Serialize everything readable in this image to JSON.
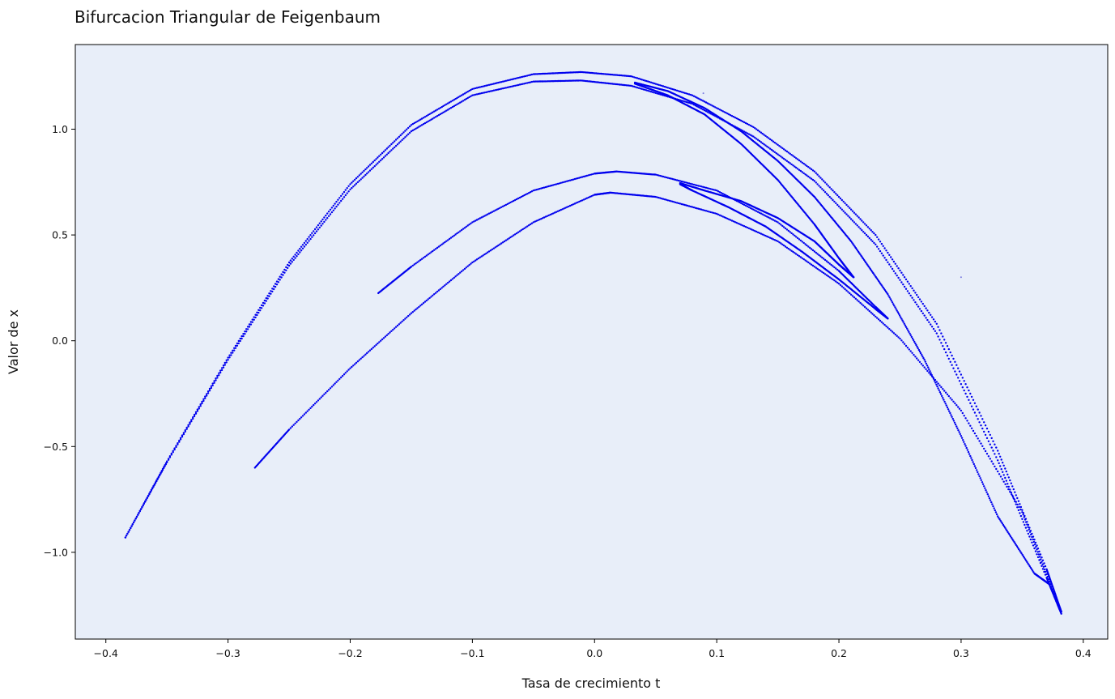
{
  "chart_data": {
    "type": "scatter",
    "title": "Bifurcacion Triangular de Feigenbaum",
    "xlabel": "Tasa de crecimiento t",
    "ylabel": "Valor de x",
    "xlim": [
      -0.425,
      0.42
    ],
    "ylim": [
      -1.41,
      1.4
    ],
    "xticks": [
      -0.4,
      -0.3,
      -0.2,
      -0.1,
      0.0,
      0.1,
      0.2,
      0.3,
      0.4
    ],
    "xtick_labels": [
      "−0.4",
      "−0.3",
      "−0.2",
      "−0.1",
      "0.0",
      "0.1",
      "0.2",
      "0.3",
      "0.4"
    ],
    "yticks": [
      -1.0,
      -0.5,
      0.0,
      0.5,
      1.0
    ],
    "ytick_labels": [
      "−1.0",
      "−0.5",
      "0.0",
      "0.5",
      "1.0"
    ],
    "grid": false,
    "colors": {
      "points": "#0000ee",
      "plot_background": "#e8eef9",
      "stray_points": "#7a7ae0"
    },
    "series": [
      {
        "x": [
          -0.384,
          -0.35,
          -0.3,
          -0.25,
          -0.2,
          -0.15,
          -0.1,
          -0.05,
          -0.011,
          0.03,
          0.08,
          0.13,
          0.18,
          0.23,
          0.28,
          0.33,
          0.37,
          0.382
        ],
        "y": [
          -0.93,
          -0.57,
          -0.08,
          0.37,
          0.74,
          1.02,
          1.19,
          1.26,
          1.27,
          1.25,
          1.16,
          1.01,
          0.8,
          0.5,
          0.08,
          -0.52,
          -1.08,
          -1.28
        ]
      },
      {
        "x": [
          -0.384,
          -0.35,
          -0.3,
          -0.25,
          -0.2,
          -0.15,
          -0.1,
          -0.05,
          -0.011,
          0.03,
          0.08,
          0.13,
          0.18,
          0.23,
          0.28,
          0.33,
          0.37,
          0.382
        ],
        "y": [
          -0.93,
          -0.575,
          -0.09,
          0.355,
          0.715,
          0.99,
          1.16,
          1.225,
          1.23,
          1.205,
          1.12,
          0.965,
          0.755,
          0.455,
          0.035,
          -0.565,
          -1.12,
          -1.29
        ]
      },
      {
        "x": [
          0.033,
          0.06,
          0.09,
          0.12,
          0.15,
          0.18,
          0.21,
          0.24,
          0.27,
          0.3,
          0.33,
          0.36,
          0.372
        ],
        "y": [
          1.22,
          1.18,
          1.1,
          0.99,
          0.85,
          0.68,
          0.47,
          0.22,
          -0.09,
          -0.45,
          -0.83,
          -1.1,
          -1.15
        ]
      },
      {
        "x": [
          0.033,
          0.06,
          0.09,
          0.12,
          0.15,
          0.18,
          0.2,
          0.212
        ],
        "y": [
          1.215,
          1.16,
          1.07,
          0.93,
          0.76,
          0.55,
          0.39,
          0.3
        ]
      },
      {
        "x": [
          0.212,
          0.2,
          0.18,
          0.15,
          0.12,
          0.09,
          0.07
        ],
        "y": [
          0.3,
          0.36,
          0.47,
          0.58,
          0.66,
          0.71,
          0.745
        ]
      },
      {
        "x": [
          -0.278,
          -0.25,
          -0.2,
          -0.15,
          -0.1,
          -0.05,
          0.0,
          0.013,
          0.05,
          0.1,
          0.15,
          0.2,
          0.25,
          0.3,
          0.35,
          0.382
        ],
        "y": [
          -0.6,
          -0.42,
          -0.13,
          0.13,
          0.37,
          0.56,
          0.69,
          0.7,
          0.68,
          0.6,
          0.47,
          0.27,
          0.01,
          -0.33,
          -0.81,
          -1.28
        ]
      },
      {
        "x": [
          -0.177,
          -0.15,
          -0.1,
          -0.05,
          0.0,
          0.018,
          0.05,
          0.1,
          0.15,
          0.2,
          0.23,
          0.24
        ],
        "y": [
          0.225,
          0.35,
          0.56,
          0.71,
          0.79,
          0.8,
          0.785,
          0.71,
          0.56,
          0.33,
          0.16,
          0.105
        ]
      },
      {
        "x": [
          0.24,
          0.23,
          0.2,
          0.17,
          0.14,
          0.11,
          0.08,
          0.07
        ],
        "y": [
          0.105,
          0.15,
          0.29,
          0.42,
          0.54,
          0.63,
          0.71,
          0.74
        ]
      }
    ],
    "stray_points": [
      {
        "x": 0.089,
        "y": 1.17
      },
      {
        "x": 0.3,
        "y": 0.3
      }
    ]
  }
}
